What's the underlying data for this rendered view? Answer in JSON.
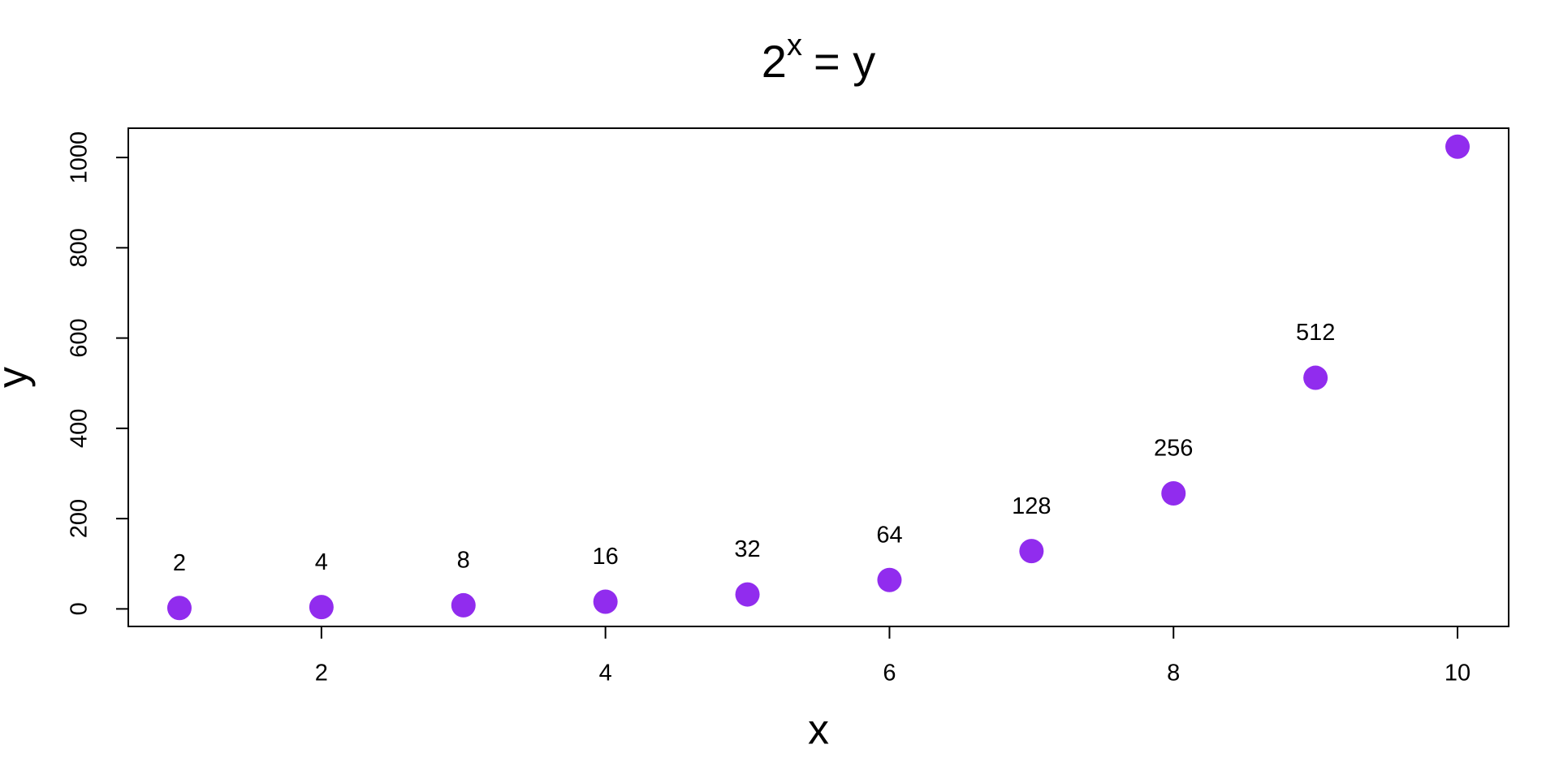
{
  "chart_data": {
    "type": "scatter",
    "title": {
      "base": "2",
      "superscript": "x",
      "text": "= y"
    },
    "x_label": "x",
    "y_label": "y",
    "x": [
      1,
      2,
      3,
      4,
      5,
      6,
      7,
      8,
      9,
      10
    ],
    "values": [
      2,
      4,
      8,
      16,
      32,
      64,
      128,
      256,
      512,
      1024
    ],
    "value_labels": [
      "2",
      "4",
      "8",
      "16",
      "32",
      "64",
      "128",
      "256",
      "512",
      null
    ],
    "color": "#912cee",
    "xlim": [
      0.64,
      10.36
    ],
    "xticks": [
      2,
      4,
      6,
      8,
      10
    ],
    "ylim": [
      -38.88,
      1064.88
    ],
    "yticks": [
      0,
      200,
      400,
      600,
      800,
      1000
    ],
    "grid": false
  }
}
